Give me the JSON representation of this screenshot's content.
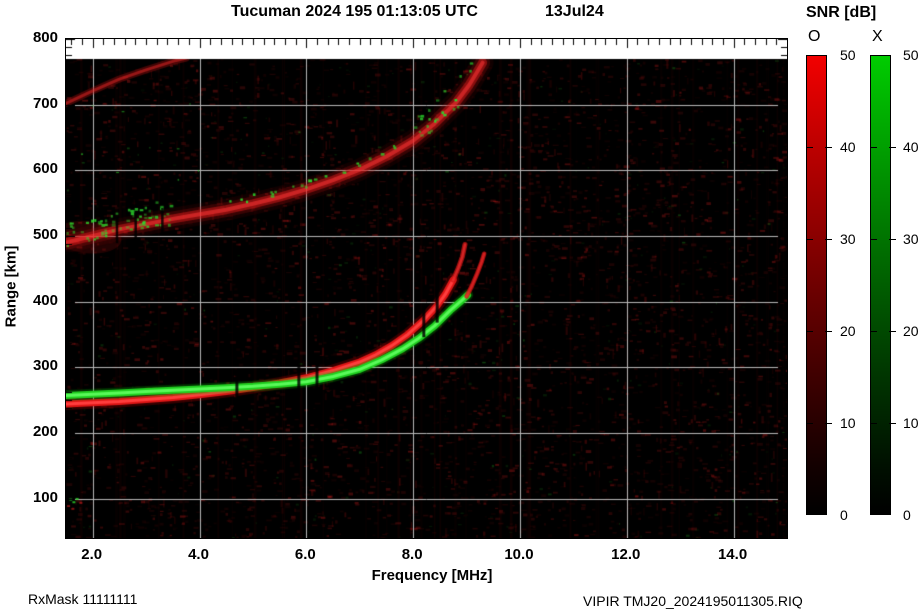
{
  "header": {
    "title": "Tucuman 2024 195 01:13:05 UTC",
    "date_label": "13Jul24"
  },
  "footer": {
    "rx_mask": "RxMask 11111111",
    "file_label": "VIPIR  TMJ20_2024195011305.RIQ"
  },
  "colorbar": {
    "title": "SNR [dB]",
    "o_label": "O",
    "x_label": "X",
    "min": 0,
    "max": 50,
    "ticks": [
      "50",
      "40",
      "30",
      "20",
      "10",
      "0"
    ],
    "tick_values": [
      50,
      40,
      30,
      20,
      10,
      0
    ],
    "o_top_color": "#f20000",
    "x_top_color": "#00cc00"
  },
  "chart_data": {
    "type": "heatmap",
    "title": "Tucuman 2024 195 01:13:05 UTC  13Jul24",
    "xlabel": "Frequency [MHz]",
    "ylabel": "Range [km]",
    "xlim": [
      1.5,
      15
    ],
    "ylim": [
      40,
      800
    ],
    "xticks": [
      2,
      4,
      6,
      8,
      10,
      12,
      14
    ],
    "xtick_labels": [
      "2.0",
      "4.0",
      "6.0",
      "8.0",
      "10.0",
      "12.0",
      "14.0"
    ],
    "yticks": [
      800,
      700,
      600,
      500,
      400,
      300,
      200,
      100
    ],
    "grid": true,
    "background": "#000000",
    "grid_color": "#b9b9b9",
    "snr_scale_db": [
      0,
      50
    ],
    "series": [
      {
        "name": "F-region echo, O-mode (red)",
        "mode": "O",
        "color": "#e11616",
        "points": [
          [
            1.5,
            244
          ],
          [
            2.0,
            246
          ],
          [
            2.5,
            248
          ],
          [
            3.0,
            251
          ],
          [
            3.5,
            254
          ],
          [
            4.0,
            258
          ],
          [
            4.5,
            263
          ],
          [
            5.0,
            269
          ],
          [
            5.5,
            276
          ],
          [
            6.0,
            284
          ],
          [
            6.5,
            295
          ],
          [
            7.0,
            308
          ],
          [
            7.3,
            319
          ],
          [
            7.6,
            333
          ],
          [
            7.9,
            350
          ],
          [
            8.2,
            372
          ],
          [
            8.45,
            394
          ],
          [
            8.6,
            411
          ],
          [
            8.75,
            433
          ]
        ]
      },
      {
        "name": "F-region O-mode cusp tip (fading)",
        "mode": "O",
        "color": "#c01010",
        "points": [
          [
            8.75,
            433
          ],
          [
            8.85,
            452
          ],
          [
            8.92,
            468
          ],
          [
            8.97,
            487
          ]
        ]
      },
      {
        "name": "F-region echo, X-mode (green)",
        "mode": "X",
        "color": "#22cc22",
        "points": [
          [
            1.5,
            257
          ],
          [
            2.0,
            259
          ],
          [
            2.5,
            261
          ],
          [
            3.0,
            263
          ],
          [
            3.5,
            265
          ],
          [
            4.0,
            267
          ],
          [
            4.5,
            269
          ],
          [
            5.0,
            271
          ],
          [
            5.5,
            274
          ],
          [
            6.0,
            278
          ],
          [
            6.5,
            286
          ],
          [
            7.0,
            297
          ],
          [
            7.4,
            311
          ],
          [
            7.8,
            328
          ],
          [
            8.1,
            344
          ],
          [
            8.4,
            363
          ],
          [
            8.7,
            387
          ],
          [
            8.9,
            401
          ],
          [
            9.02,
            410
          ]
        ]
      },
      {
        "name": "F-region X-mode cusp tip (red)",
        "mode": "X",
        "color": "#b81212",
        "points": [
          [
            9.0,
            408
          ],
          [
            9.1,
            424
          ],
          [
            9.2,
            443
          ],
          [
            9.28,
            460
          ],
          [
            9.33,
            473
          ]
        ]
      },
      {
        "name": "Second-hop F trace (diffuse red with green scatter)",
        "mode": "O",
        "color": "#b41414",
        "points": [
          [
            1.5,
            490
          ],
          [
            2.0,
            500
          ],
          [
            2.5,
            510
          ],
          [
            3.0,
            518
          ],
          [
            3.5,
            526
          ],
          [
            4.0,
            533
          ],
          [
            4.5,
            540
          ],
          [
            5.0,
            549
          ],
          [
            5.5,
            559
          ],
          [
            6.0,
            571
          ],
          [
            6.5,
            585
          ],
          [
            7.0,
            601
          ],
          [
            7.5,
            621
          ],
          [
            8.0,
            645
          ],
          [
            8.4,
            671
          ],
          [
            8.8,
            703
          ],
          [
            9.05,
            730
          ],
          [
            9.2,
            750
          ],
          [
            9.3,
            764
          ]
        ]
      },
      {
        "name": "Oblique streak, top-left",
        "mode": "O",
        "color": "#a01010",
        "points": [
          [
            1.5,
            702
          ],
          [
            2.0,
            721
          ],
          [
            2.5,
            739
          ],
          [
            3.0,
            753
          ],
          [
            3.5,
            766
          ],
          [
            3.75,
            771
          ]
        ]
      }
    ],
    "rfi_gaps_mhz_f_trace": [
      4.7,
      5.86,
      6.2,
      8.2,
      8.45
    ],
    "rfi_gaps_mhz_2f_trace": [
      2.45,
      2.8,
      3.3
    ],
    "corner_specks": {
      "green": [
        [
          1.56,
          100
        ],
        [
          1.62,
          96
        ],
        [
          1.68,
          101
        ]
      ],
      "red": [
        [
          1.52,
          90
        ],
        [
          1.6,
          86
        ],
        [
          1.75,
          95
        ]
      ]
    },
    "noise": {
      "seed": 1234,
      "red_speckles": 4200,
      "green_speckles": 330,
      "faint_columns": 45,
      "red_dashes": 420
    }
  }
}
